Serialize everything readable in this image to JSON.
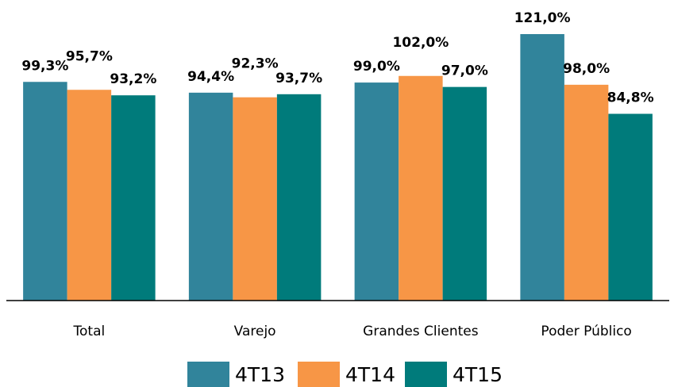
{
  "chart_data": {
    "type": "bar",
    "categories": [
      "Total",
      "Varejo",
      "Grandes Clientes",
      "Poder Público"
    ],
    "series": [
      {
        "name": "4T13",
        "color": "#31849b",
        "values": [
          99.3,
          94.4,
          99.0,
          121.0
        ],
        "value_labels": [
          "99,3%",
          "94,4%",
          "99,0%",
          "121,0%"
        ]
      },
      {
        "name": "4T14",
        "color": "#f79646",
        "values": [
          95.7,
          92.3,
          102.0,
          98.0
        ],
        "value_labels": [
          "95,7%",
          "92,3%",
          "102,0%",
          "98,0%"
        ]
      },
      {
        "name": "4T15",
        "color": "#007b7b",
        "values": [
          93.2,
          93.7,
          97.0,
          84.8
        ],
        "value_labels": [
          "93,2%",
          "93,7%",
          "97,0%",
          "84,8%"
        ]
      }
    ]
  }
}
